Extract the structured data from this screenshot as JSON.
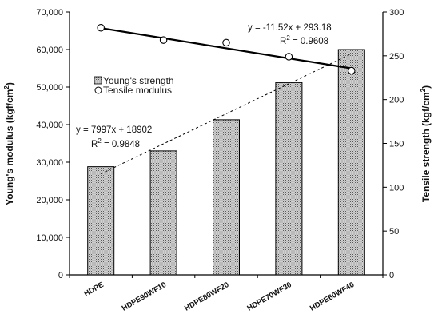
{
  "chart_data": {
    "type": "bar",
    "categories": [
      "HDPE",
      "HDPE90WF10",
      "HDPE80WF20",
      "HDPE70WF30",
      "HDPE60WF40"
    ],
    "series": [
      {
        "name": "Young's strength",
        "kind": "bar",
        "axis": "left",
        "values": [
          28800,
          33000,
          41300,
          51200,
          60000
        ]
      },
      {
        "name": "Tensile modulus",
        "kind": "scatter",
        "axis": "right",
        "values": [
          282,
          268,
          265,
          249,
          233
        ]
      }
    ],
    "trendlines": [
      {
        "series": "Young's strength",
        "slope": 7997,
        "intercept": 18902,
        "style": "dashed",
        "axis": "left",
        "x_range": [
          1,
          5
        ]
      },
      {
        "series": "Tensile modulus",
        "slope": -11.52,
        "intercept": 293.18,
        "style": "solid",
        "axis": "right",
        "x_range": [
          1,
          5
        ]
      }
    ],
    "left_axis": {
      "label_main": "Young's modulus (kgf/cm",
      "label_sup": "2",
      "label_end": ")",
      "ylim": [
        0,
        70000
      ],
      "ticks": [
        "0",
        "10,000",
        "20,000",
        "30,000",
        "40,000",
        "50,000",
        "60,000",
        "70,000"
      ]
    },
    "right_axis": {
      "label_main": "Tensile strength (kgf/cm",
      "label_sup": "2",
      "label_end": ")",
      "ylim": [
        0,
        300
      ],
      "ticks": [
        "0",
        "50",
        "100",
        "150",
        "200",
        "250",
        "300"
      ]
    },
    "annotations": {
      "top_eq": "y = -11.52x + 293.18",
      "top_r2_prefix": "R",
      "top_r2_sup": "2",
      "top_r2_rest": " = 0.9608",
      "bottom_eq": "y = 7997x + 18902",
      "bottom_r2_prefix": "R",
      "bottom_r2_sup": "2",
      "bottom_r2_rest": " = 0.9848"
    },
    "legend": {
      "placement": "upper-left",
      "items": [
        "Young's strength",
        "Tensile modulus"
      ]
    },
    "grid": false
  }
}
